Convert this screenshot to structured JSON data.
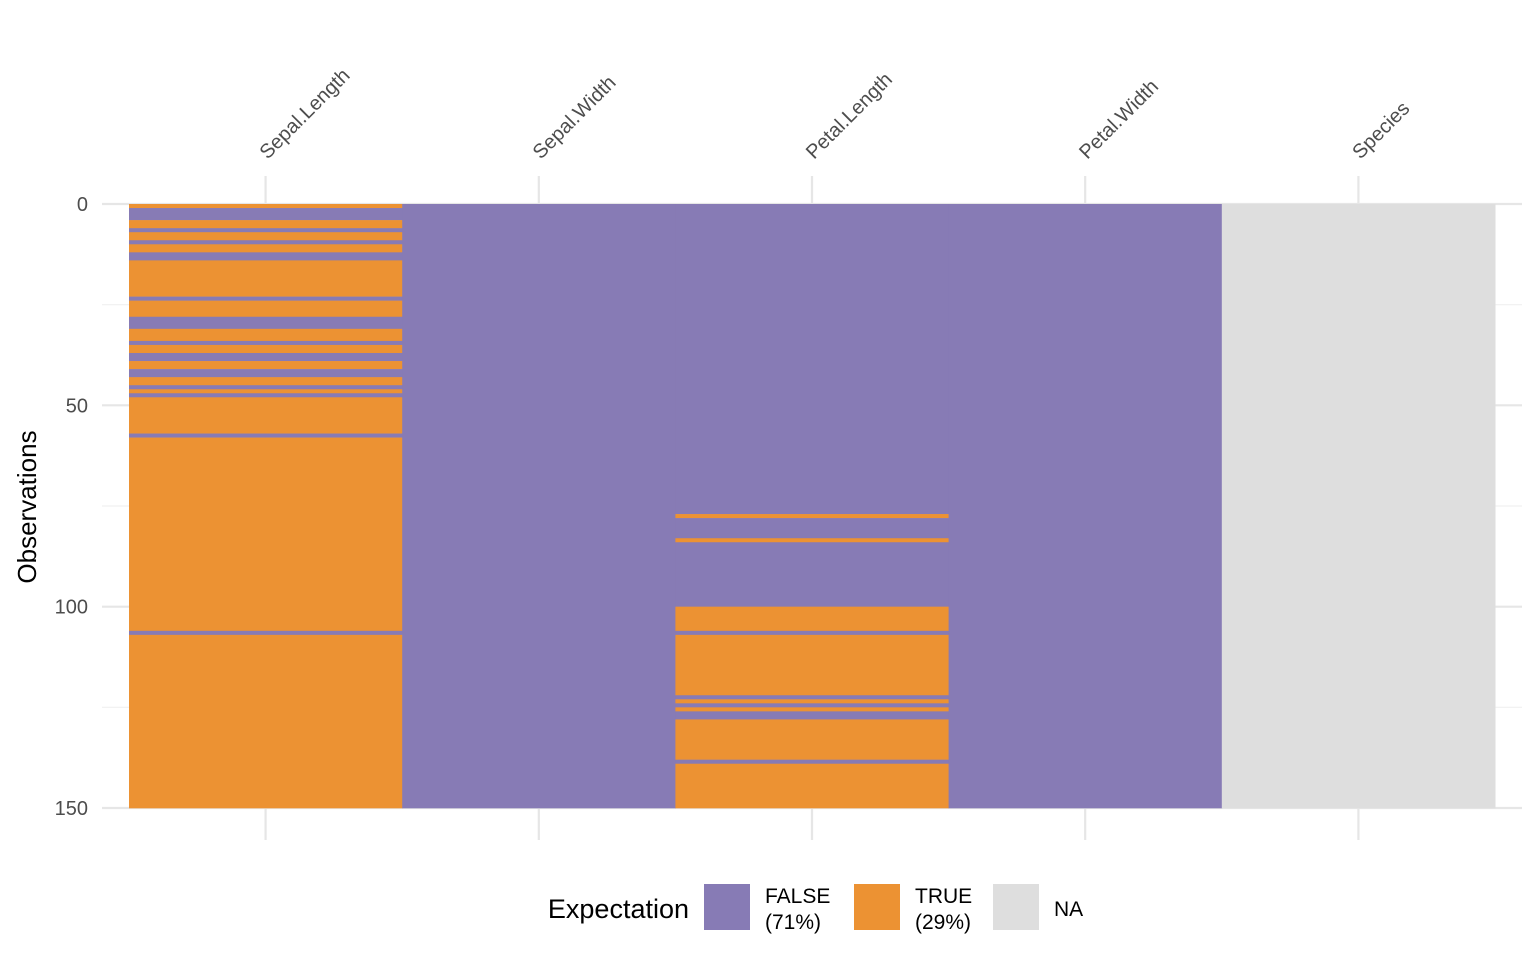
{
  "chart_data": {
    "type": "heatmap",
    "title": "",
    "xlabel": "",
    "ylabel": "Observations",
    "ylim": [
      0,
      150
    ],
    "y_ticks": [
      0,
      50,
      100,
      150
    ],
    "grid": true,
    "legend_position": "bottom",
    "legend": {
      "title": "Expectation",
      "entries": [
        {
          "key": "FALSE",
          "line1": "FALSE",
          "line2": "(71%)",
          "color": "#877bb5"
        },
        {
          "key": "TRUE",
          "line1": "TRUE",
          "line2": "(29%)",
          "color": "#ec9233"
        },
        {
          "key": "NA",
          "line1": "NA",
          "line2": "",
          "color": "#dedede"
        }
      ]
    },
    "columns": [
      {
        "name": "Sepal.Length",
        "default": "FALSE",
        "true_rows": [
          1,
          5,
          6,
          8,
          9,
          11,
          12,
          15,
          16,
          17,
          18,
          19,
          20,
          21,
          22,
          23,
          25,
          26,
          27,
          28,
          32,
          33,
          34,
          36,
          37,
          40,
          41,
          44,
          45,
          47,
          49,
          50,
          51,
          52,
          53,
          54,
          55,
          56,
          57,
          59,
          60,
          61,
          62,
          63,
          64,
          65,
          66,
          67,
          68,
          69,
          70,
          71,
          72,
          73,
          74,
          75,
          76,
          77,
          78,
          79,
          80,
          81,
          82,
          83,
          84,
          85,
          86,
          87,
          88,
          89,
          90,
          91,
          92,
          93,
          94,
          95,
          96,
          97,
          98,
          99,
          100,
          101,
          102,
          103,
          104,
          105,
          106,
          108,
          109,
          110,
          111,
          112,
          113,
          114,
          115,
          116,
          117,
          118,
          119,
          120,
          121,
          122,
          123,
          124,
          125,
          126,
          127,
          128,
          129,
          130,
          131,
          132,
          133,
          134,
          135,
          136,
          137,
          138,
          139,
          140,
          141,
          142,
          143,
          144,
          145,
          146,
          147,
          148,
          149,
          150
        ]
      },
      {
        "name": "Sepal.Width",
        "default": "FALSE",
        "true_rows": []
      },
      {
        "name": "Petal.Length",
        "default": "FALSE",
        "true_rows": [
          78,
          84,
          101,
          102,
          103,
          104,
          105,
          106,
          108,
          109,
          110,
          111,
          112,
          113,
          114,
          115,
          116,
          117,
          118,
          119,
          120,
          121,
          122,
          124,
          126,
          129,
          130,
          131,
          132,
          133,
          134,
          135,
          136,
          137,
          138,
          140,
          141,
          142,
          143,
          144,
          145,
          146,
          147,
          148,
          149,
          150
        ]
      },
      {
        "name": "Petal.Width",
        "default": "FALSE",
        "true_rows": []
      },
      {
        "name": "Species",
        "default": "NA",
        "true_rows": []
      }
    ]
  }
}
